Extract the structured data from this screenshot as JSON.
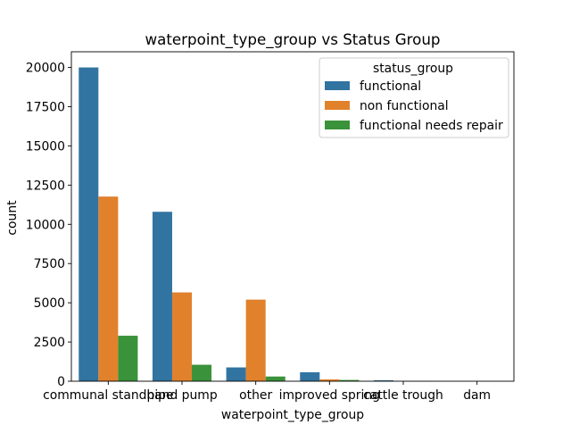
{
  "chart_data": {
    "type": "bar",
    "title": "waterpoint_type_group vs Status Group",
    "xlabel": "waterpoint_type_group",
    "ylabel": "count",
    "categories": [
      "communal standpipe",
      "hand pump",
      "other",
      "improved spring",
      "cattle trough",
      "dam"
    ],
    "series": [
      {
        "name": "functional",
        "color": "#3274a1",
        "values": [
          20000,
          10800,
          880,
          570,
          60,
          5
        ]
      },
      {
        "name": "non functional",
        "color": "#e1812c",
        "values": [
          11770,
          5660,
          5200,
          120,
          15,
          0
        ]
      },
      {
        "name": "functional needs repair",
        "color": "#3a923a",
        "values": [
          2900,
          1050,
          300,
          80,
          10,
          0
        ]
      }
    ],
    "ylim": [
      0,
      20999
    ],
    "yticks": [
      0,
      2500,
      5000,
      7500,
      10000,
      12500,
      15000,
      17500,
      20000
    ],
    "legend": {
      "title": "status_group",
      "position": "upper right"
    },
    "grid": false
  }
}
